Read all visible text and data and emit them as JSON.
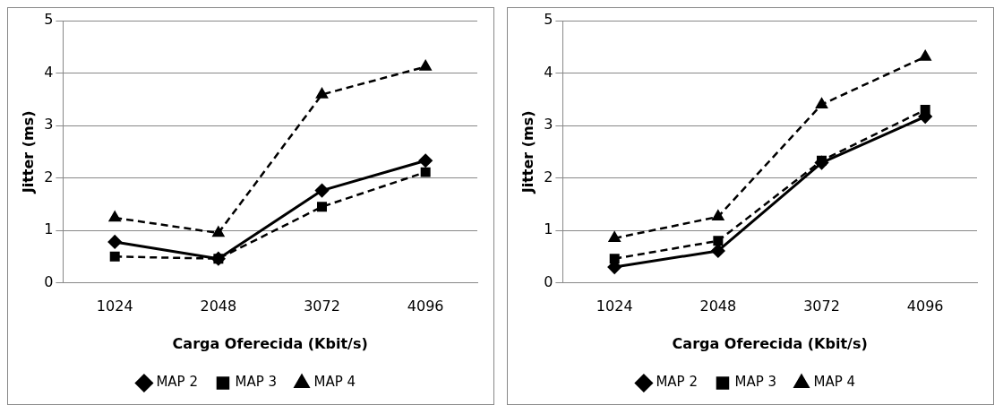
{
  "chart_data": [
    {
      "type": "line",
      "categories": [
        "1024",
        "2048",
        "3072",
        "4096"
      ],
      "xlabel": "Carga Oferecida (Kbit/s)",
      "ylabel": "Jitter (ms)",
      "ylim": [
        0,
        5
      ],
      "yticks": [
        0,
        1,
        2,
        3,
        4,
        5
      ],
      "grid": "y",
      "legend": "bottom",
      "series": [
        {
          "name": "MAP 2",
          "color": "#000000",
          "marker": "diamond",
          "line_style": "solid",
          "values": [
            0.78,
            0.46,
            1.76,
            2.33
          ]
        },
        {
          "name": "MAP 3",
          "color": "#000000",
          "marker": "square",
          "line_style": "dashed",
          "values": [
            0.5,
            0.46,
            1.45,
            2.11
          ]
        },
        {
          "name": "MAP 4",
          "color": "#000000",
          "marker": "triangle",
          "line_style": "dashed",
          "values": [
            1.24,
            0.95,
            3.59,
            4.12
          ]
        }
      ]
    },
    {
      "type": "line",
      "categories": [
        "1024",
        "2048",
        "3072",
        "4096"
      ],
      "xlabel": "Carga Oferecida (Kbit/s)",
      "ylabel": "Jitter (ms)",
      "ylim": [
        0,
        5
      ],
      "yticks": [
        0,
        1,
        2,
        3,
        4,
        5
      ],
      "grid": "y",
      "legend": "bottom",
      "series": [
        {
          "name": "MAP 2",
          "color": "#000000",
          "marker": "diamond",
          "line_style": "solid",
          "values": [
            0.3,
            0.61,
            2.29,
            3.17
          ]
        },
        {
          "name": "MAP 3",
          "color": "#000000",
          "marker": "square",
          "line_style": "dashed",
          "values": [
            0.46,
            0.8,
            2.33,
            3.3
          ]
        },
        {
          "name": "MAP 4",
          "color": "#000000",
          "marker": "triangle",
          "line_style": "dashed",
          "values": [
            0.85,
            1.26,
            3.4,
            4.31
          ]
        }
      ]
    }
  ]
}
